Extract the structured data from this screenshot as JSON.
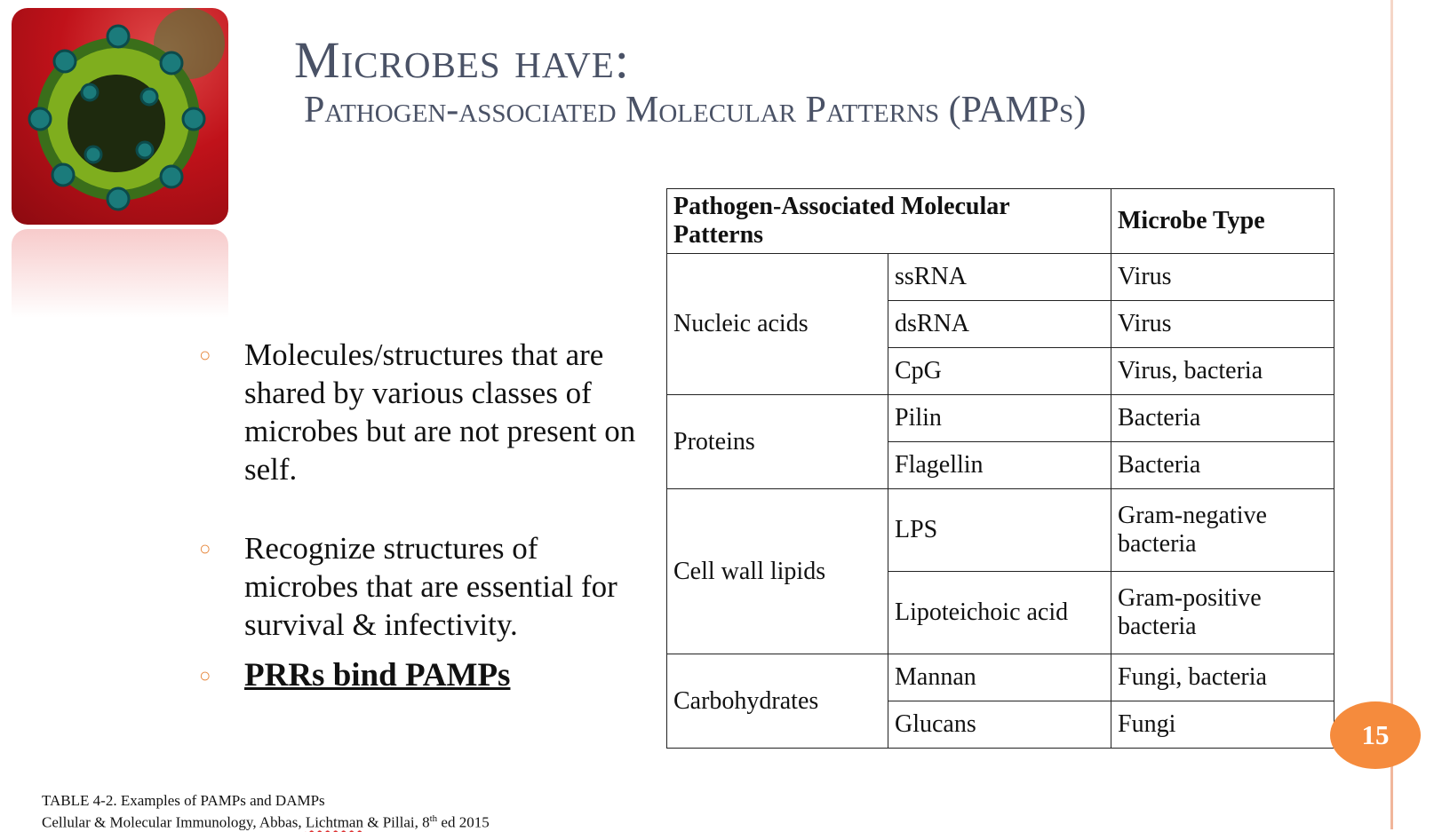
{
  "title": {
    "line1": "Microbes have:",
    "line2": "Pathogen-associated Molecular Patterns  (PAMPs)"
  },
  "bullets": [
    "Molecules/structures that are shared by various classes of microbes but are not present on self.",
    "Recognize structures of microbes that are essential for survival & infectivity.",
    "PRRs bind PAMPs"
  ],
  "table": {
    "headers": [
      "Pathogen-Associated Molecular Patterns",
      "Microbe Type"
    ],
    "groups": [
      {
        "name": "Nucleic acids",
        "rows": [
          [
            "ssRNA",
            "Virus"
          ],
          [
            "dsRNA",
            "Virus"
          ],
          [
            "CpG",
            "Virus, bacteria"
          ]
        ]
      },
      {
        "name": "Proteins",
        "rows": [
          [
            "Pilin",
            "Bacteria"
          ],
          [
            "Flagellin",
            "Bacteria"
          ]
        ]
      },
      {
        "name": "Cell wall lipids",
        "rows": [
          [
            "LPS",
            "Gram-negative bacteria"
          ],
          [
            "Lipoteichoic acid",
            "Gram-positive bacteria"
          ]
        ]
      },
      {
        "name": "Carbohydrates",
        "rows": [
          [
            "Mannan",
            "Fungi, bacteria"
          ],
          [
            "Glucans",
            "Fungi"
          ]
        ]
      }
    ]
  },
  "footnote": {
    "line1": "TABLE 4-2.  Examples of PAMPs and DAMPs",
    "line2_before": "Cellular & Molecular Immunology, Abbas, ",
    "line2_name": "Lichtman",
    "line2_mid": " & Pillai, 8",
    "line2_sup": "th",
    "line2_after": " ed 2015"
  },
  "page_number": "15",
  "colors": {
    "accent": "#f58b3d",
    "title": "#4a5266"
  }
}
